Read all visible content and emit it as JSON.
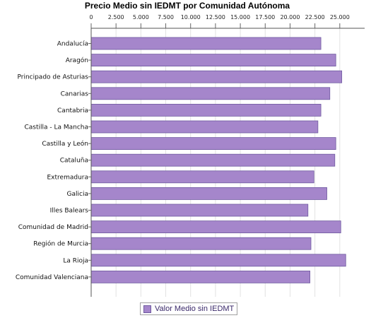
{
  "chart_data": {
    "type": "bar",
    "orientation": "horizontal",
    "title": "Precio Medio sin IEDMT por Comunidad Autónoma",
    "xlim": [
      0,
      27500
    ],
    "ticks": [
      "0",
      "2.500",
      "5.000",
      "7.500",
      "10.000",
      "12.500",
      "15.000",
      "17.500",
      "20.000",
      "22.500",
      "25.000"
    ],
    "tick_values": [
      0,
      2500,
      5000,
      7500,
      10000,
      12500,
      15000,
      17500,
      20000,
      22500,
      25000
    ],
    "categories": [
      "Andalucía",
      "Aragón",
      "Principado de Asturias",
      "Canarias",
      "Cantabria",
      "Castilla - La Mancha",
      "Castilla y León",
      "Cataluña",
      "Extremadura",
      "Galicia",
      "Illes Balears",
      "Comunidad de Madrid",
      "Región de Murcia",
      "La Rioja",
      "Comunidad Valenciana"
    ],
    "series": [
      {
        "name": "Valor Medio sin IEDMT",
        "values": [
          23100,
          24600,
          25200,
          24000,
          23100,
          22800,
          24600,
          24500,
          22400,
          23700,
          21800,
          25100,
          22100,
          25600,
          22000
        ],
        "color": "#a586cb"
      }
    ],
    "grid": true,
    "legend_position": "bottom-center"
  }
}
